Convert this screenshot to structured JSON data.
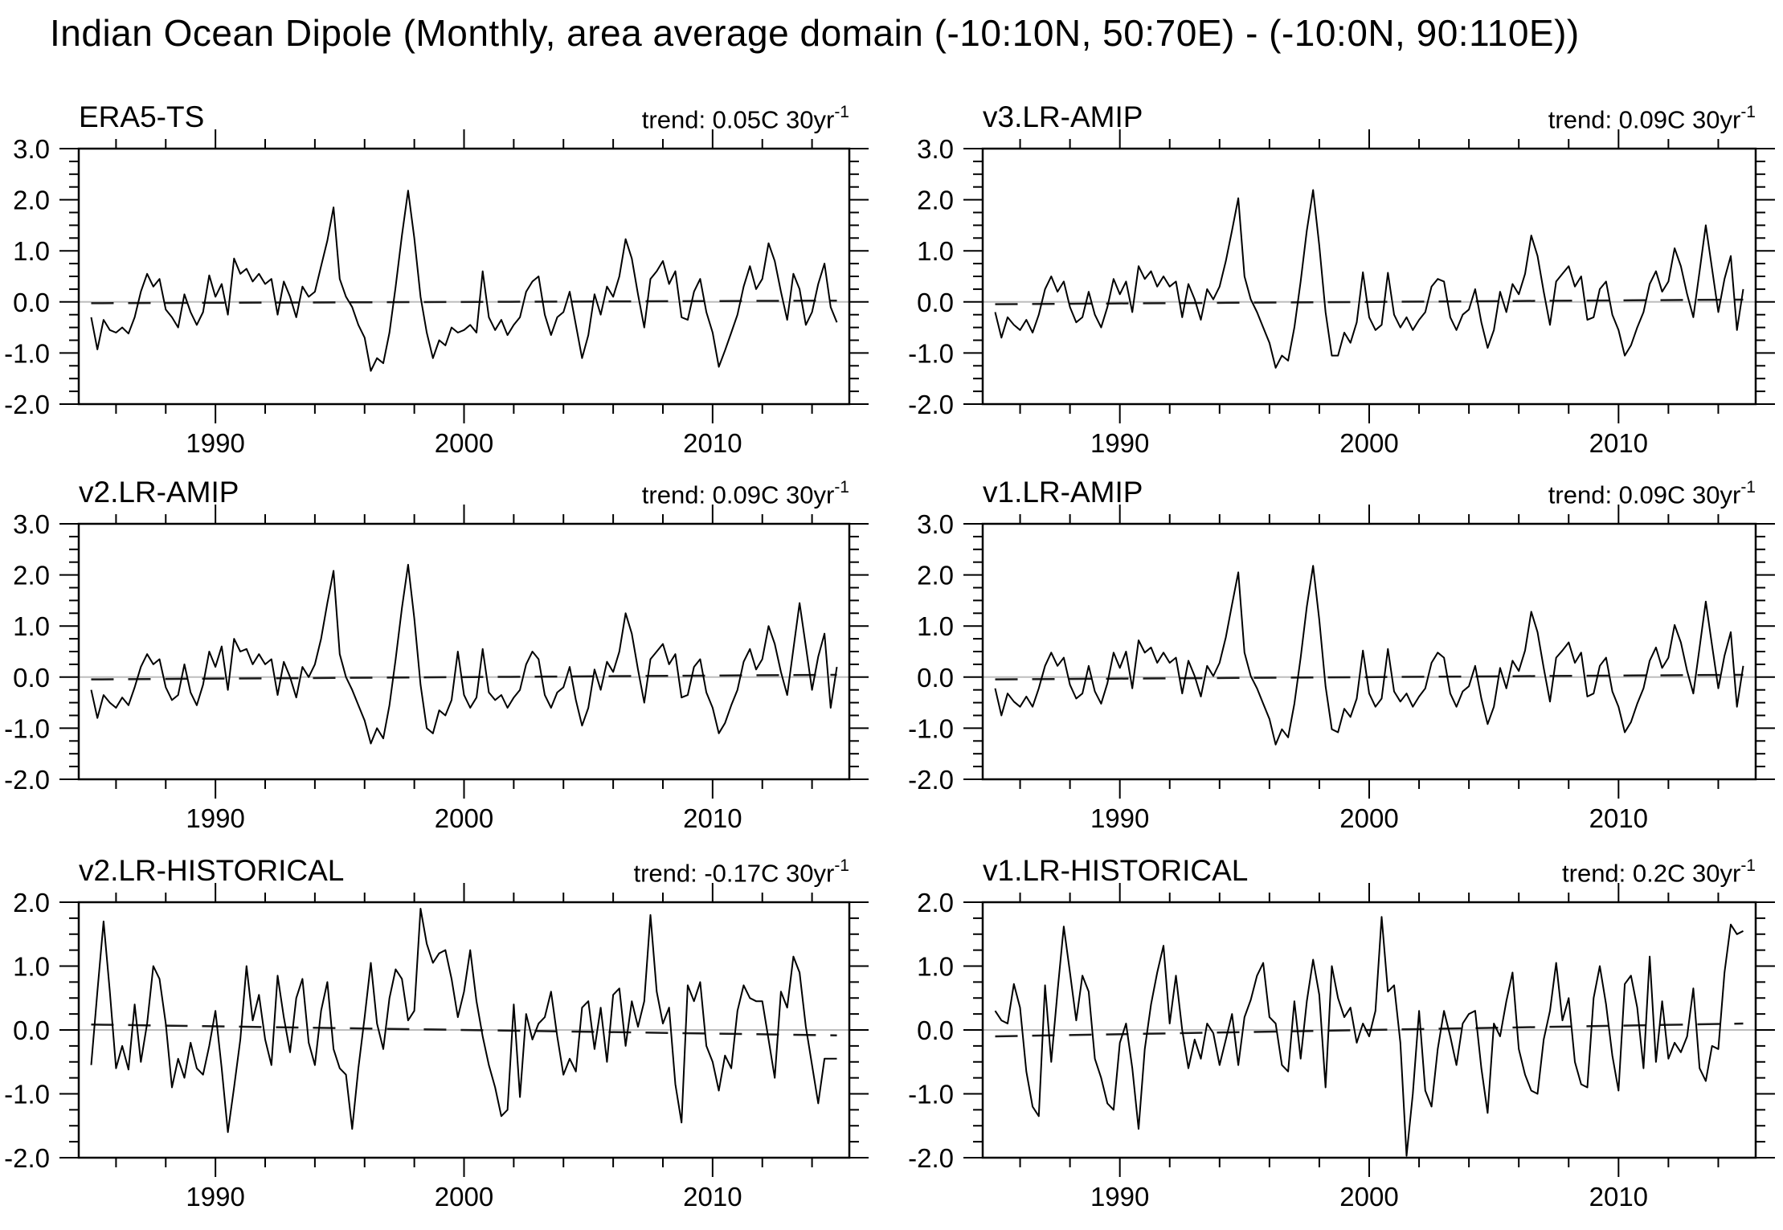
{
  "title": "Indian Ocean Dipole (Monthly, area average domain (-10:10N, 50:70E) - (-10:0N, 90:110E))",
  "styles": {
    "line_color": "#000000",
    "zero_line_color": "#bdbdbd",
    "trend_line_color": "#1a1a1a",
    "background": "#ffffff"
  },
  "chart_data": [
    {
      "type": "line",
      "label": "ERA5-TS",
      "trend_label": "trend: 0.05C 30yr",
      "trend_sup": "-1",
      "trend_c_per_30yr": 0.05,
      "x_range": [
        1984.5,
        2015.5
      ],
      "ylim": [
        -2.0,
        3.0
      ],
      "xticks_major": [
        1990,
        2000,
        2010
      ],
      "xtick_labels": [
        "1990",
        "2000",
        "2010"
      ],
      "xtick_minor_step": 2,
      "yticks_major": [
        3,
        2,
        1,
        0,
        -1,
        -2
      ],
      "ytick_labels": [
        "3.0",
        "2.0",
        "1.0",
        "0.0",
        "-1.0",
        "-2.0"
      ],
      "ytick_minor_step": 0.25,
      "zero_line": 0.0,
      "x_start": 1985.0,
      "x_step": 0.25,
      "values": [
        -0.3,
        -0.93,
        -0.35,
        -0.55,
        -0.6,
        -0.5,
        -0.62,
        -0.3,
        0.2,
        0.55,
        0.3,
        0.45,
        -0.15,
        -0.3,
        -0.5,
        0.15,
        -0.2,
        -0.45,
        -0.2,
        0.52,
        0.1,
        0.35,
        -0.25,
        0.85,
        0.55,
        0.65,
        0.4,
        0.55,
        0.35,
        0.45,
        -0.25,
        0.4,
        0.1,
        -0.3,
        0.3,
        0.1,
        0.2,
        0.7,
        1.2,
        1.85,
        0.45,
        0.1,
        -0.1,
        -0.45,
        -0.7,
        -1.35,
        -1.1,
        -1.2,
        -0.6,
        0.3,
        1.3,
        2.18,
        1.25,
        0.1,
        -0.6,
        -1.1,
        -0.75,
        -0.85,
        -0.5,
        -0.6,
        -0.55,
        -0.45,
        -0.6,
        0.6,
        -0.3,
        -0.55,
        -0.35,
        -0.65,
        -0.45,
        -0.3,
        0.2,
        0.4,
        0.5,
        -0.25,
        -0.65,
        -0.3,
        -0.2,
        0.2,
        -0.45,
        -1.1,
        -0.65,
        0.15,
        -0.25,
        0.3,
        0.1,
        0.5,
        1.23,
        0.85,
        0.15,
        -0.5,
        0.45,
        0.6,
        0.8,
        0.35,
        0.6,
        -0.3,
        -0.35,
        0.2,
        0.45,
        -0.2,
        -0.6,
        -1.27,
        -0.95,
        -0.6,
        -0.25,
        0.3,
        0.7,
        0.25,
        0.45,
        1.15,
        0.8,
        0.2,
        -0.35,
        0.55,
        0.25,
        -0.45,
        -0.2,
        0.35,
        0.75,
        -0.1,
        -0.4
      ]
    },
    {
      "type": "line",
      "label": "v3.LR-AMIP",
      "trend_label": "trend: 0.09C 30yr",
      "trend_sup": "-1",
      "trend_c_per_30yr": 0.09,
      "x_range": [
        1984.5,
        2015.5
      ],
      "ylim": [
        -2.0,
        3.0
      ],
      "xticks_major": [
        1990,
        2000,
        2010
      ],
      "xtick_labels": [
        "1990",
        "2000",
        "2010"
      ],
      "xtick_minor_step": 2,
      "yticks_major": [
        3,
        2,
        1,
        0,
        -1,
        -2
      ],
      "ytick_labels": [
        "3.0",
        "2.0",
        "1.0",
        "0.0",
        "-1.0",
        "-2.0"
      ],
      "ytick_minor_step": 0.25,
      "zero_line": 0.0,
      "x_start": 1985.0,
      "x_step": 0.25,
      "values": [
        -0.2,
        -0.7,
        -0.3,
        -0.45,
        -0.55,
        -0.35,
        -0.6,
        -0.25,
        0.25,
        0.5,
        0.2,
        0.4,
        -0.1,
        -0.4,
        -0.3,
        0.2,
        -0.25,
        -0.5,
        -0.1,
        0.45,
        0.15,
        0.4,
        -0.2,
        0.7,
        0.45,
        0.6,
        0.3,
        0.5,
        0.3,
        0.4,
        -0.3,
        0.35,
        0.05,
        -0.35,
        0.25,
        0.05,
        0.3,
        0.8,
        1.4,
        2.03,
        0.5,
        0.05,
        -0.2,
        -0.5,
        -0.8,
        -1.29,
        -1.05,
        -1.15,
        -0.5,
        0.4,
        1.4,
        2.19,
        1.1,
        -0.2,
        -1.05,
        -1.05,
        -0.6,
        -0.8,
        -0.4,
        0.58,
        -0.3,
        -0.55,
        -0.45,
        0.57,
        -0.25,
        -0.5,
        -0.3,
        -0.55,
        -0.35,
        -0.2,
        0.3,
        0.45,
        0.4,
        -0.3,
        -0.55,
        -0.25,
        -0.15,
        0.25,
        -0.4,
        -0.9,
        -0.55,
        0.2,
        -0.2,
        0.35,
        0.15,
        0.55,
        1.3,
        0.9,
        0.2,
        -0.45,
        0.4,
        0.55,
        0.7,
        0.3,
        0.5,
        -0.35,
        -0.3,
        0.25,
        0.4,
        -0.25,
        -0.55,
        -1.05,
        -0.85,
        -0.5,
        -0.2,
        0.35,
        0.6,
        0.2,
        0.4,
        1.05,
        0.7,
        0.15,
        -0.3,
        0.6,
        1.5,
        0.65,
        -0.2,
        0.45,
        0.9,
        -0.55,
        0.25
      ]
    },
    {
      "type": "line",
      "label": "v2.LR-AMIP",
      "trend_label": "trend: 0.09C 30yr",
      "trend_sup": "-1",
      "trend_c_per_30yr": 0.09,
      "x_range": [
        1984.5,
        2015.5
      ],
      "ylim": [
        -2.0,
        3.0
      ],
      "xticks_major": [
        1990,
        2000,
        2010
      ],
      "xtick_labels": [
        "1990",
        "2000",
        "2010"
      ],
      "xtick_minor_step": 2,
      "yticks_major": [
        3,
        2,
        1,
        0,
        -1,
        -2
      ],
      "ytick_labels": [
        "3.0",
        "2.0",
        "1.0",
        "0.0",
        "-1.0",
        "-2.0"
      ],
      "ytick_minor_step": 0.25,
      "zero_line": 0.0,
      "x_start": 1985.0,
      "x_step": 0.25,
      "values": [
        -0.25,
        -0.8,
        -0.35,
        -0.5,
        -0.6,
        -0.4,
        -0.55,
        -0.2,
        0.2,
        0.45,
        0.25,
        0.35,
        -0.2,
        -0.45,
        -0.35,
        0.25,
        -0.3,
        -0.55,
        -0.15,
        0.5,
        0.2,
        0.6,
        -0.25,
        0.75,
        0.5,
        0.55,
        0.25,
        0.45,
        0.25,
        0.35,
        -0.35,
        0.3,
        0.0,
        -0.4,
        0.2,
        0.0,
        0.25,
        0.75,
        1.45,
        2.08,
        0.45,
        0.0,
        -0.25,
        -0.55,
        -0.85,
        -1.3,
        -1.0,
        -1.2,
        -0.55,
        0.35,
        1.35,
        2.2,
        1.15,
        -0.15,
        -1.0,
        -1.1,
        -0.65,
        -0.75,
        -0.45,
        0.5,
        -0.35,
        -0.6,
        -0.4,
        0.55,
        -0.3,
        -0.45,
        -0.35,
        -0.6,
        -0.4,
        -0.25,
        0.25,
        0.5,
        0.35,
        -0.35,
        -0.6,
        -0.3,
        -0.2,
        0.2,
        -0.45,
        -0.95,
        -0.6,
        0.15,
        -0.25,
        0.3,
        0.1,
        0.5,
        1.25,
        0.85,
        0.15,
        -0.5,
        0.35,
        0.5,
        0.65,
        0.25,
        0.45,
        -0.4,
        -0.35,
        0.2,
        0.35,
        -0.3,
        -0.6,
        -1.1,
        -0.9,
        -0.55,
        -0.25,
        0.3,
        0.55,
        0.15,
        0.35,
        1.0,
        0.65,
        0.1,
        -0.35,
        0.55,
        1.45,
        0.6,
        -0.25,
        0.4,
        0.85,
        -0.6,
        0.2
      ]
    },
    {
      "type": "line",
      "label": "v1.LR-AMIP",
      "trend_label": "trend: 0.09C 30yr",
      "trend_sup": "-1",
      "trend_c_per_30yr": 0.09,
      "x_range": [
        1984.5,
        2015.5
      ],
      "ylim": [
        -2.0,
        3.0
      ],
      "xticks_major": [
        1990,
        2000,
        2010
      ],
      "xtick_labels": [
        "1990",
        "2000",
        "2010"
      ],
      "xtick_minor_step": 2,
      "yticks_major": [
        3,
        2,
        1,
        0,
        -1,
        -2
      ],
      "ytick_labels": [
        "3.0",
        "2.0",
        "1.0",
        "0.0",
        "-1.0",
        "-2.0"
      ],
      "ytick_minor_step": 0.25,
      "zero_line": 0.0,
      "x_start": 1985.0,
      "x_step": 0.25,
      "values": [
        -0.22,
        -0.75,
        -0.32,
        -0.48,
        -0.58,
        -0.38,
        -0.58,
        -0.22,
        0.22,
        0.48,
        0.22,
        0.38,
        -0.15,
        -0.42,
        -0.32,
        0.22,
        -0.28,
        -0.52,
        -0.12,
        0.48,
        0.18,
        0.5,
        -0.22,
        0.72,
        0.48,
        0.58,
        0.28,
        0.48,
        0.28,
        0.38,
        -0.32,
        0.32,
        0.02,
        -0.38,
        0.22,
        0.02,
        0.28,
        0.78,
        1.42,
        2.05,
        0.48,
        0.02,
        -0.22,
        -0.52,
        -0.82,
        -1.32,
        -1.02,
        -1.18,
        -0.52,
        0.38,
        1.38,
        2.18,
        1.12,
        -0.18,
        -1.02,
        -1.08,
        -0.62,
        -0.78,
        -0.42,
        0.52,
        -0.32,
        -0.58,
        -0.42,
        0.55,
        -0.28,
        -0.48,
        -0.32,
        -0.58,
        -0.38,
        -0.22,
        0.28,
        0.48,
        0.38,
        -0.32,
        -0.58,
        -0.28,
        -0.18,
        0.22,
        -0.42,
        -0.92,
        -0.58,
        0.18,
        -0.22,
        0.32,
        0.12,
        0.52,
        1.28,
        0.88,
        0.18,
        -0.48,
        0.38,
        0.52,
        0.68,
        0.28,
        0.48,
        -0.38,
        -0.32,
        0.22,
        0.38,
        -0.28,
        -0.58,
        -1.08,
        -0.88,
        -0.52,
        -0.22,
        0.32,
        0.58,
        0.18,
        0.38,
        1.02,
        0.68,
        0.12,
        -0.32,
        0.58,
        1.48,
        0.62,
        -0.22,
        0.42,
        0.88,
        -0.58,
        0.22
      ]
    },
    {
      "type": "line",
      "label": "v2.LR-HISTORICAL",
      "trend_label": "trend: -0.17C 30yr",
      "trend_sup": "-1",
      "trend_c_per_30yr": -0.17,
      "x_range": [
        1984.5,
        2015.5
      ],
      "ylim": [
        -2.0,
        2.0
      ],
      "xticks_major": [
        1990,
        2000,
        2010
      ],
      "xtick_labels": [
        "1990",
        "2000",
        "2010"
      ],
      "xtick_minor_step": 2,
      "yticks_major": [
        2,
        1,
        0,
        -1,
        -2
      ],
      "ytick_labels": [
        "2.0",
        "1.0",
        "0.0",
        "-1.0",
        "-2.0"
      ],
      "ytick_minor_step": 0.25,
      "zero_line": 0.0,
      "x_start": 1985.0,
      "x_step": 0.25,
      "values": [
        -0.55,
        0.6,
        1.7,
        0.6,
        -0.6,
        -0.25,
        -0.62,
        0.4,
        -0.5,
        0.1,
        1.0,
        0.8,
        0.1,
        -0.9,
        -0.45,
        -0.75,
        -0.2,
        -0.6,
        -0.7,
        -0.25,
        0.3,
        -0.6,
        -1.6,
        -0.9,
        -0.15,
        1.0,
        0.15,
        0.55,
        -0.15,
        -0.55,
        0.85,
        0.2,
        -0.35,
        0.5,
        0.8,
        -0.2,
        -0.55,
        0.3,
        0.75,
        -0.3,
        -0.6,
        -0.7,
        -1.55,
        -0.6,
        0.2,
        1.05,
        0.1,
        -0.3,
        0.5,
        0.95,
        0.8,
        0.15,
        0.3,
        1.9,
        1.35,
        1.05,
        1.2,
        1.25,
        0.8,
        0.2,
        0.6,
        1.25,
        0.45,
        -0.1,
        -0.55,
        -0.9,
        -1.35,
        -1.25,
        0.4,
        -1.05,
        0.25,
        -0.15,
        0.1,
        0.2,
        0.6,
        -0.1,
        -0.7,
        -0.45,
        -0.65,
        0.35,
        0.45,
        -0.3,
        0.35,
        -0.5,
        0.55,
        0.65,
        -0.25,
        0.45,
        0.05,
        0.45,
        1.8,
        0.6,
        0.1,
        0.35,
        -0.85,
        -1.45,
        0.7,
        0.45,
        0.75,
        -0.25,
        -0.5,
        -0.95,
        -0.4,
        -0.6,
        0.3,
        0.7,
        0.5,
        0.45,
        0.45,
        -0.15,
        -0.75,
        0.6,
        0.35,
        1.15,
        0.9,
        0.05,
        -0.55,
        -1.15,
        -0.45,
        -0.45,
        -0.45
      ]
    },
    {
      "type": "line",
      "label": "v1.LR-HISTORICAL",
      "trend_label": "trend: 0.2C 30yr",
      "trend_sup": "-1",
      "trend_c_per_30yr": 0.2,
      "x_range": [
        1984.5,
        2015.5
      ],
      "ylim": [
        -2.0,
        2.0
      ],
      "xticks_major": [
        1990,
        2000,
        2010
      ],
      "xtick_labels": [
        "1990",
        "2000",
        "2010"
      ],
      "xtick_minor_step": 2,
      "yticks_major": [
        2,
        1,
        0,
        -1,
        -2
      ],
      "ytick_labels": [
        "2.0",
        "1.0",
        "0.0",
        "-1.0",
        "-2.0"
      ],
      "ytick_minor_step": 0.25,
      "zero_line": 0.0,
      "x_start": 1985.0,
      "x_step": 0.25,
      "values": [
        0.3,
        0.15,
        0.1,
        0.72,
        0.35,
        -0.65,
        -1.2,
        -1.35,
        0.7,
        -0.5,
        0.6,
        1.62,
        0.9,
        0.15,
        0.85,
        0.6,
        -0.45,
        -0.75,
        -1.15,
        -1.25,
        -0.2,
        0.1,
        -0.6,
        -1.55,
        -0.3,
        0.4,
        0.9,
        1.32,
        0.1,
        0.85,
        0.0,
        -0.6,
        -0.15,
        -0.45,
        0.1,
        -0.05,
        -0.55,
        -0.15,
        0.25,
        -0.55,
        0.2,
        0.47,
        0.85,
        1.05,
        0.2,
        0.1,
        -0.55,
        -0.65,
        0.45,
        -0.45,
        0.45,
        1.1,
        0.55,
        -0.9,
        1.0,
        0.5,
        0.2,
        0.35,
        -0.2,
        0.1,
        -0.1,
        0.3,
        1.77,
        0.6,
        0.7,
        -0.2,
        -1.97,
        -1.0,
        0.3,
        -0.95,
        -1.2,
        -0.3,
        0.3,
        -0.1,
        -0.55,
        0.1,
        0.25,
        0.3,
        -0.6,
        -1.3,
        0.1,
        -0.1,
        0.45,
        0.9,
        -0.3,
        -0.7,
        -0.95,
        -1.0,
        -0.15,
        0.3,
        1.05,
        0.15,
        0.5,
        -0.5,
        -0.85,
        -0.9,
        0.5,
        1.0,
        0.4,
        -0.4,
        -0.95,
        0.72,
        0.85,
        0.35,
        -0.6,
        1.15,
        -0.5,
        0.45,
        -0.45,
        -0.2,
        -0.35,
        -0.1,
        0.65,
        -0.6,
        -0.8,
        -0.25,
        -0.3,
        0.9,
        1.65,
        1.5,
        1.55
      ]
    }
  ]
}
